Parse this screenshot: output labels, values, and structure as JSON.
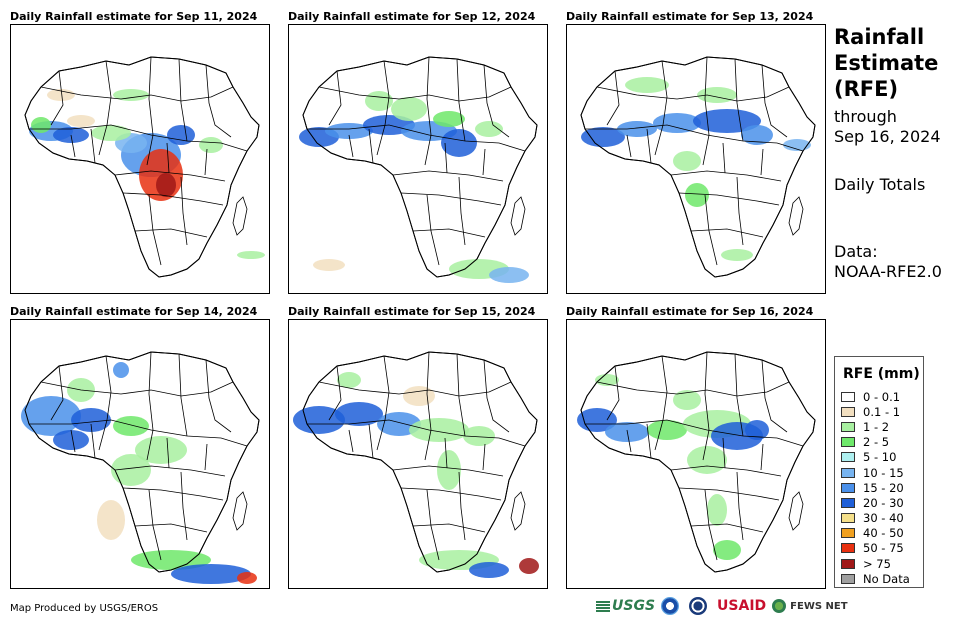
{
  "panels": [
    {
      "title": "Daily Rainfall estimate for Sep 11, 2024"
    },
    {
      "title": "Daily Rainfall estimate for Sep 12, 2024"
    },
    {
      "title": "Daily Rainfall estimate for Sep 13, 2024"
    },
    {
      "title": "Daily Rainfall estimate for Sep 14, 2024"
    },
    {
      "title": "Daily Rainfall estimate for Sep 15, 2024"
    },
    {
      "title": "Daily Rainfall estimate for Sep 16, 2024"
    }
  ],
  "sidebar": {
    "title_line1": "Rainfall",
    "title_line2": "Estimate",
    "title_line3": "(RFE)",
    "through_label": "through",
    "through_date": "Sep 16, 2024",
    "totals_label": "Daily Totals",
    "data_label": "Data:",
    "data_source": "NOAA-RFE2.0"
  },
  "legend": {
    "title": "RFE (mm)",
    "items": [
      {
        "label": "0 - 0.1",
        "color": "#ffffff"
      },
      {
        "label": "0.1 - 1",
        "color": "#f2dfc0"
      },
      {
        "label": "1 - 2",
        "color": "#a8f0a0"
      },
      {
        "label": "2 - 5",
        "color": "#6ee86a"
      },
      {
        "label": "5 - 10",
        "color": "#aef0f0"
      },
      {
        "label": "10 - 15",
        "color": "#78b4f0"
      },
      {
        "label": "15 - 20",
        "color": "#4a90ea"
      },
      {
        "label": "20 - 30",
        "color": "#1f5fd8"
      },
      {
        "label": "30 - 40",
        "color": "#f5e08a"
      },
      {
        "label": "40 - 50",
        "color": "#f0a020"
      },
      {
        "label": "50 - 75",
        "color": "#e83010"
      },
      {
        "label": "> 75",
        "color": "#a01818"
      },
      {
        "label": "No Data",
        "color": "#a0a0a0"
      }
    ]
  },
  "footer": {
    "producer": "Map Produced by USGS/EROS",
    "logos": [
      {
        "name": "usgs-logo",
        "text": "USGS"
      },
      {
        "name": "noaa-logo",
        "text": ""
      },
      {
        "name": "usaid-seal-logo",
        "text": ""
      },
      {
        "name": "usaid-logo",
        "text": "USAID"
      },
      {
        "name": "fews-net-logo",
        "text": "FEWS NET"
      }
    ]
  }
}
